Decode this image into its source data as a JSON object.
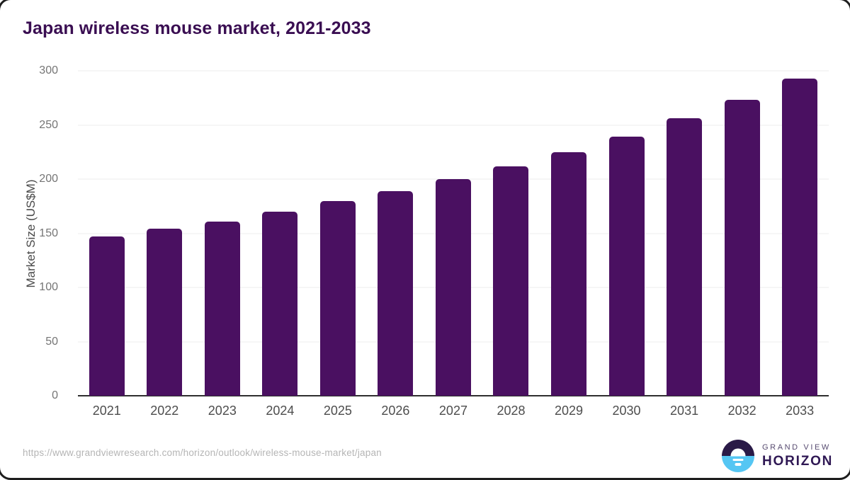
{
  "title": "Japan wireless mouse market, 2021-2033",
  "chart_data": {
    "type": "bar",
    "title": "Japan wireless mouse market, 2021-2033",
    "categories": [
      "2021",
      "2022",
      "2023",
      "2024",
      "2025",
      "2026",
      "2027",
      "2028",
      "2029",
      "2030",
      "2031",
      "2032",
      "2033"
    ],
    "values": [
      147,
      154,
      161,
      170,
      180,
      189,
      200,
      212,
      225,
      239,
      256,
      273,
      293
    ],
    "xlabel": "",
    "ylabel": "Market Size (US$M)",
    "ylim": [
      0,
      300
    ],
    "yticks": [
      0,
      50,
      100,
      150,
      200,
      250,
      300
    ],
    "grid": "horizontal",
    "legend": "none",
    "bar_color": "#4a1061"
  },
  "footer": {
    "source_url": "https://www.grandviewresearch.com/horizon/outlook/wireless-mouse-market/japan",
    "logo": {
      "line1": "GRAND VIEW",
      "line2": "HORIZON",
      "icon": "sunrise-horizon-icon",
      "icon_dark_color": "#2a1a47",
      "icon_blue_color": "#55c6f3"
    }
  },
  "colors": {
    "title_text": "#3a0e52",
    "bar": "#4a1061",
    "gridline": "#ececec",
    "axis_line": "#2f2f2f",
    "y_tick_text": "#757575",
    "x_tick_text": "#4d4d4d",
    "axis_title_text": "#4a4a4a",
    "url_text": "#b5b5b5",
    "frame_border": "#1d1d1d"
  }
}
